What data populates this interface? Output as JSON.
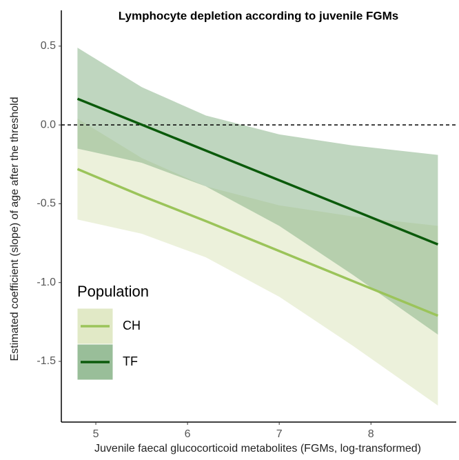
{
  "chart_data": {
    "type": "line_ribbon",
    "title": "Lymphocyte depletion according to juvenile FGMs",
    "x_label": "Juvenile faecal glucocorticoid metabolites (FGMs, log-transformed)",
    "y_label": "Estimated coefficient (slope) of age after the threshold",
    "legend_title": "Population",
    "reference_line": 0,
    "xlim": [
      4.624,
      8.93
    ],
    "ylim": [
      -1.885,
      0.727
    ],
    "xticks": [
      5,
      6,
      7,
      8
    ],
    "yticks": [
      0.5,
      {
        "value": 0,
        "label": "0.0"
      },
      -0.5,
      {
        "value": -1,
        "label": "-1.0"
      },
      -1.5
    ],
    "series": [
      {
        "name": "CH",
        "color": "#9bc45a",
        "band_color": "#d9e4b8",
        "x": [
          4.8,
          5.5,
          6.2,
          7,
          7.8,
          8.73
        ],
        "values": [
          -0.28,
          -0.45,
          -0.61,
          -0.8,
          -0.99,
          -1.21
        ],
        "upper": [
          0.04,
          -0.21,
          -0.39,
          -0.51,
          -0.58,
          -0.64
        ],
        "lower": [
          -0.6,
          -0.69,
          -0.84,
          -1.09,
          -1.4,
          -1.78
        ]
      },
      {
        "name": "TF",
        "color": "#0b5a0b",
        "band_color": "#7fae7f",
        "x": [
          4.8,
          5.5,
          6.2,
          7,
          7.8,
          8.73
        ],
        "values": [
          0.166,
          0.002,
          -0.163,
          -0.351,
          -0.539,
          -0.758
        ],
        "upper": [
          0.49,
          0.24,
          0.06,
          -0.06,
          -0.13,
          -0.19
        ],
        "lower": [
          -0.15,
          -0.24,
          -0.39,
          -0.64,
          -0.95,
          -1.33
        ]
      }
    ]
  }
}
